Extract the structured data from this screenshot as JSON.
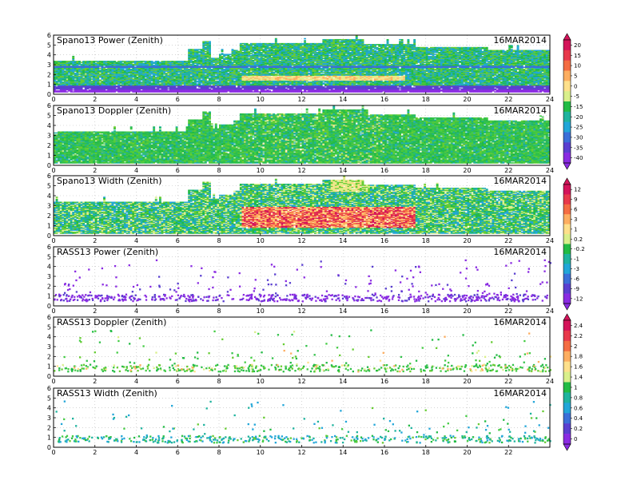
{
  "date": "16MAR2014",
  "x_ticks_even": [
    "0",
    "2",
    "4",
    "6",
    "8",
    "10",
    "12",
    "14",
    "16",
    "18",
    "20",
    "22",
    "24"
  ],
  "x_ticks_last": [
    "0",
    "2",
    "4",
    "6",
    "8",
    "10",
    "12",
    "14",
    "16",
    "18",
    "20",
    "22"
  ],
  "y_ticks": [
    "0",
    "1",
    "2",
    "3",
    "4",
    "5",
    "6"
  ],
  "colorbars": [
    {
      "id": "cb-spano-power-doppler",
      "labels": [
        "20",
        "15",
        "10",
        "5",
        "0",
        "-5",
        "-15",
        "-20",
        "-25",
        "-30",
        "-35",
        "-40"
      ]
    },
    {
      "id": "cb-spano-width-rass-power",
      "labels": [
        "12",
        "9",
        "6",
        "3",
        "1",
        "0.2",
        "-0.2",
        "-1",
        "-3",
        "-6",
        "-9",
        "-12"
      ]
    },
    {
      "id": "cb-rass-doppler-width",
      "labels": [
        "2.4",
        "2.2",
        "2",
        "1.8",
        "1.6",
        "1.4",
        "1",
        "0.8",
        "0.6",
        "0.4",
        "0.2",
        "0"
      ]
    }
  ],
  "chart_data": [
    {
      "type": "heatmap",
      "title": "Spano13 Power (Zenith)",
      "xlim": [
        0,
        24
      ],
      "ylim": [
        0,
        6
      ],
      "grid": true,
      "x_ticks": [
        0,
        2,
        4,
        6,
        8,
        10,
        12,
        14,
        16,
        18,
        20,
        22,
        24
      ],
      "y_ticks": [
        0,
        1,
        2,
        3,
        4,
        5,
        6
      ],
      "colorbar": {
        "ticks": [
          20,
          15,
          10,
          5,
          0,
          -5,
          -15,
          -20,
          -25,
          -30,
          -35,
          -40
        ]
      }
    },
    {
      "type": "heatmap",
      "title": "Spano13 Doppler (Zenith)",
      "xlim": [
        0,
        24
      ],
      "ylim": [
        0,
        6
      ],
      "grid": true,
      "x_ticks": [
        0,
        2,
        4,
        6,
        8,
        10,
        12,
        14,
        16,
        18,
        20,
        22,
        24
      ],
      "y_ticks": [
        0,
        1,
        2,
        3,
        4,
        5,
        6
      ]
    },
    {
      "type": "heatmap",
      "title": "Spano13 Width (Zenith)",
      "xlim": [
        0,
        24
      ],
      "ylim": [
        0,
        6
      ],
      "grid": true,
      "x_ticks": [
        0,
        2,
        4,
        6,
        8,
        10,
        12,
        14,
        16,
        18,
        20,
        22,
        24
      ],
      "y_ticks": [
        0,
        1,
        2,
        3,
        4,
        5,
        6
      ],
      "colorbar": {
        "ticks": [
          12,
          9,
          6,
          3,
          1,
          0.2,
          -0.2,
          -1,
          -3,
          -6,
          -9,
          -12
        ]
      }
    },
    {
      "type": "scatter",
      "title": "RASS13 Power (Zenith)",
      "xlim": [
        0,
        24
      ],
      "ylim": [
        0,
        6
      ],
      "grid": true,
      "x_ticks": [
        0,
        2,
        4,
        6,
        8,
        10,
        12,
        14,
        16,
        18,
        20,
        22,
        24
      ],
      "y_ticks": [
        0,
        1,
        2,
        3,
        4,
        5,
        6
      ]
    },
    {
      "type": "scatter",
      "title": "RASS13 Doppler (Zenith)",
      "xlim": [
        0,
        24
      ],
      "ylim": [
        0,
        6
      ],
      "grid": true,
      "x_ticks": [
        0,
        2,
        4,
        6,
        8,
        10,
        12,
        14,
        16,
        18,
        20,
        22,
        24
      ],
      "y_ticks": [
        0,
        1,
        2,
        3,
        4,
        5,
        6
      ],
      "colorbar": {
        "ticks": [
          2.4,
          2.2,
          2,
          1.8,
          1.6,
          1.4,
          1,
          0.8,
          0.6,
          0.4,
          0.2,
          0
        ]
      }
    },
    {
      "type": "scatter",
      "title": "RASS13 Width (Zenith)",
      "xlim": [
        0,
        24
      ],
      "ylim": [
        0,
        6
      ],
      "grid": true,
      "x_ticks": [
        0,
        2,
        4,
        6,
        8,
        10,
        12,
        14,
        16,
        18,
        20,
        22
      ],
      "y_ticks": [
        0,
        1,
        2,
        3,
        4,
        5,
        6
      ]
    }
  ]
}
